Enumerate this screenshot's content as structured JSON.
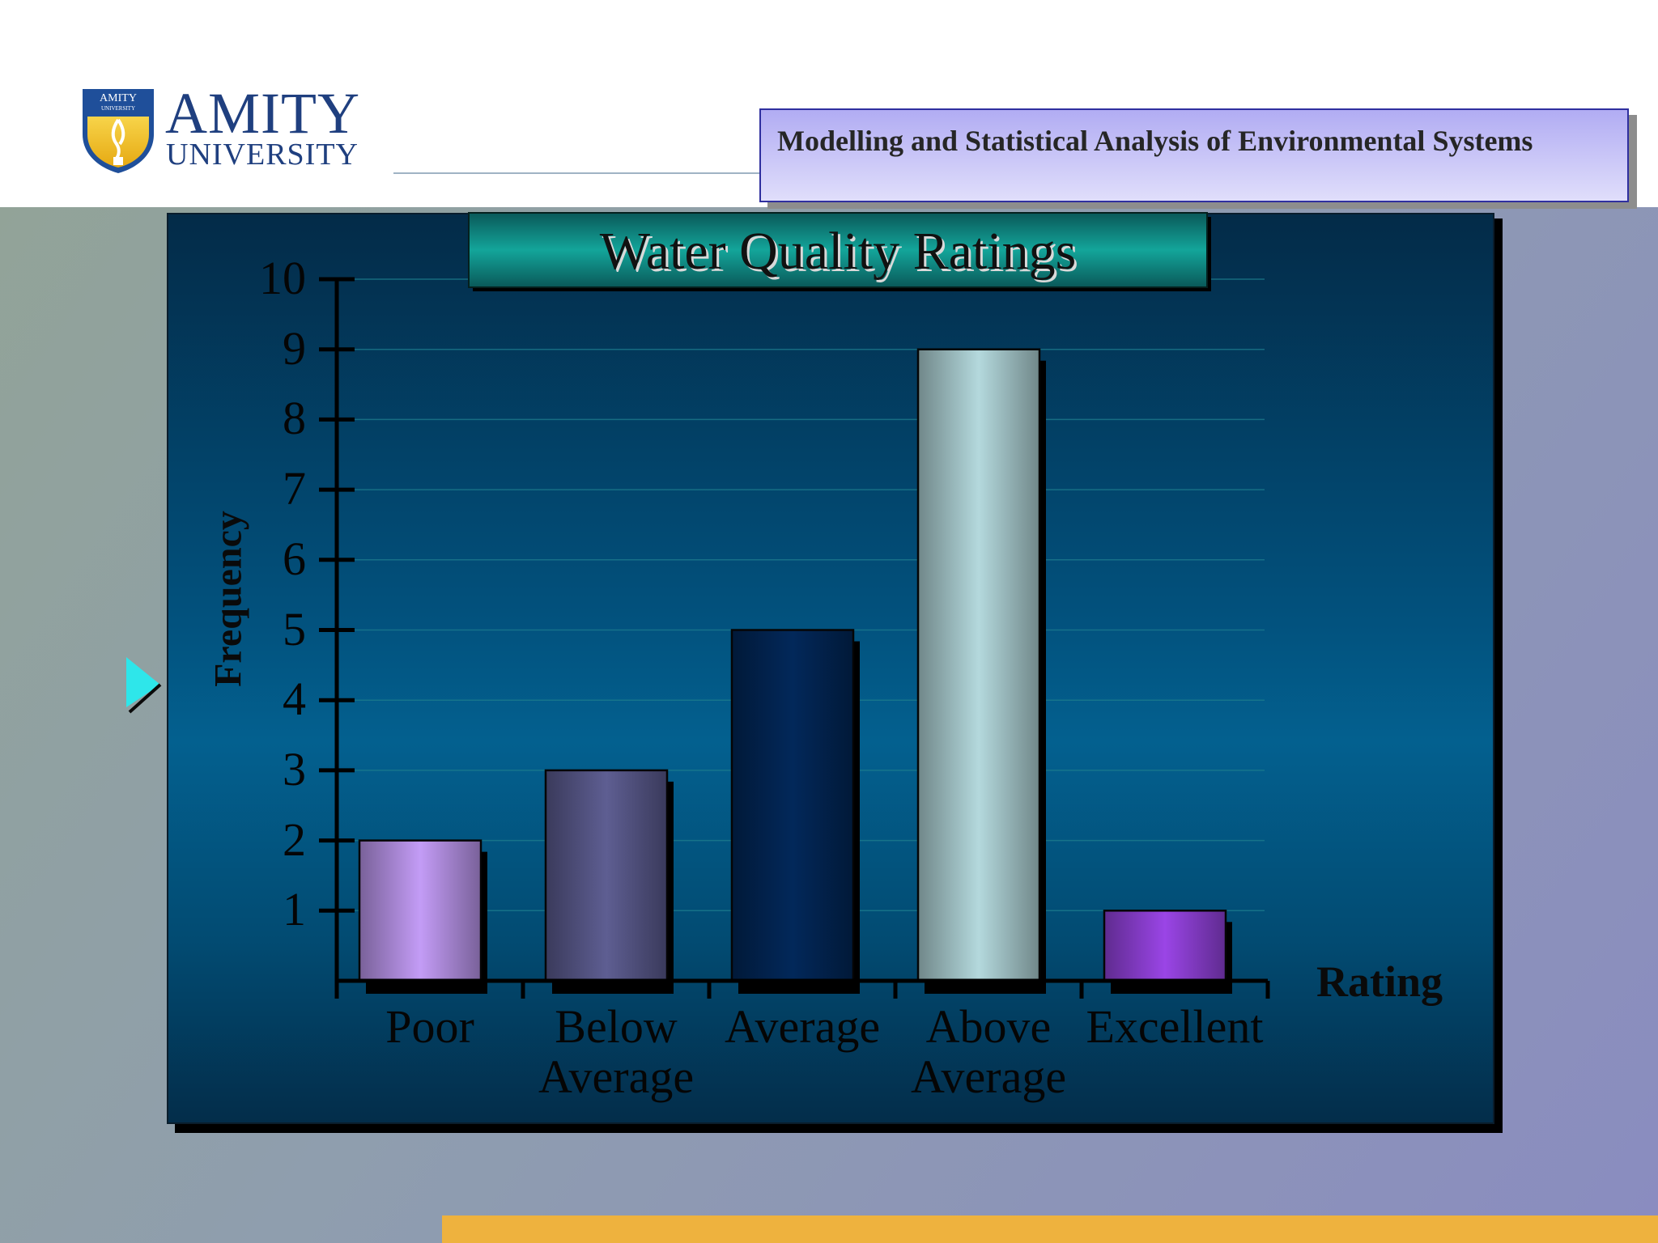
{
  "header": {
    "logo": {
      "name": "amity-university-logo",
      "line1": "AMITY",
      "line2": "UNIVERSITY",
      "shield_text": "AMITY UNIVERSITY"
    },
    "course_title": "Modelling and Statistical Analysis of Environmental Systems"
  },
  "colors": {
    "accent_band": "#eeb23e",
    "title_box": "#13a59a",
    "course_box": "#c3c0f6"
  },
  "chart_data": {
    "type": "bar",
    "title": "Water Quality Ratings",
    "xlabel": "Rating",
    "ylabel": "Frequency",
    "categories": [
      "Poor",
      "Below Average",
      "Average",
      "Above Average",
      "Excellent"
    ],
    "values": [
      2,
      3,
      5,
      9,
      1
    ],
    "bar_colors": [
      "#c39cf6",
      "#5e5e92",
      "#02285a",
      "#b4d9dd",
      "#9a45e6"
    ],
    "ylim": [
      0,
      10
    ],
    "yticks": [
      1,
      2,
      3,
      4,
      5,
      6,
      7,
      8,
      9,
      10
    ],
    "grid": true,
    "legend": "none"
  }
}
